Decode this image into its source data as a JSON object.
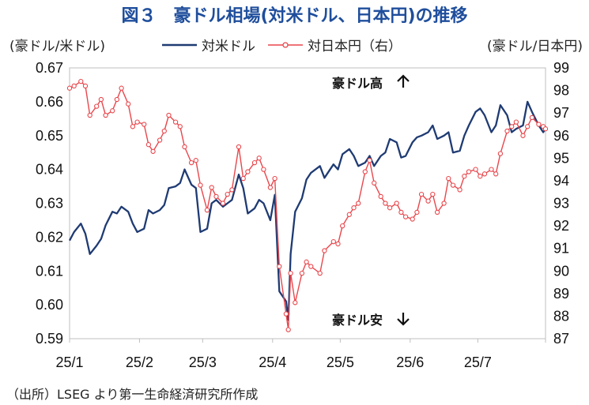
{
  "title": "図３　豪ドル相場(対米ドル、日本円)の推移",
  "left_unit": "(豪ドル/米ドル)",
  "right_unit": "(豪ドル/日本円)",
  "source": "（出所）LSEG より第一生命経済研究所作成",
  "colors": {
    "usd": "#1f3b73",
    "jpy": "#e8474c"
  },
  "chart_data": {
    "type": "line",
    "x_tick_labels": [
      "25/1",
      "25/2",
      "25/3",
      "25/4",
      "25/5",
      "25/6",
      "25/7"
    ],
    "x_range": [
      "2025-01-01",
      "2025-07-31"
    ],
    "y_left": {
      "range": [
        0.59,
        0.67
      ],
      "ticks": [
        "0.59",
        "0.60",
        "0.61",
        "0.62",
        "0.63",
        "0.64",
        "0.65",
        "0.66",
        "0.67"
      ]
    },
    "y_right": {
      "range": [
        87,
        99
      ],
      "ticks": [
        "87",
        "88",
        "89",
        "90",
        "91",
        "92",
        "93",
        "94",
        "95",
        "96",
        "97",
        "98",
        "99"
      ]
    },
    "annotations": {
      "up": "豪ドル高",
      "down": "豪ドル安"
    },
    "series": [
      {
        "name": "対米ドル",
        "axis": "left",
        "points": [
          [
            "2025-01-01",
            0.619
          ],
          [
            "2025-01-03",
            0.6215
          ],
          [
            "2025-01-06",
            0.624
          ],
          [
            "2025-01-08",
            0.621
          ],
          [
            "2025-01-10",
            0.615
          ],
          [
            "2025-01-13",
            0.6175
          ],
          [
            "2025-01-15",
            0.6195
          ],
          [
            "2025-01-17",
            0.6235
          ],
          [
            "2025-01-20",
            0.6275
          ],
          [
            "2025-01-22",
            0.627
          ],
          [
            "2025-01-24",
            0.629
          ],
          [
            "2025-01-27",
            0.6275
          ],
          [
            "2025-01-29",
            0.624
          ],
          [
            "2025-01-31",
            0.6215
          ],
          [
            "2025-02-03",
            0.6225
          ],
          [
            "2025-02-05",
            0.628
          ],
          [
            "2025-02-07",
            0.627
          ],
          [
            "2025-02-10",
            0.628
          ],
          [
            "2025-02-12",
            0.6295
          ],
          [
            "2025-02-14",
            0.6345
          ],
          [
            "2025-02-17",
            0.635
          ],
          [
            "2025-02-19",
            0.636
          ],
          [
            "2025-02-21",
            0.64
          ],
          [
            "2025-02-24",
            0.6355
          ],
          [
            "2025-02-26",
            0.6345
          ],
          [
            "2025-02-28",
            0.6215
          ],
          [
            "2025-03-03",
            0.6225
          ],
          [
            "2025-03-05",
            0.63
          ],
          [
            "2025-03-07",
            0.631
          ],
          [
            "2025-03-10",
            0.629
          ],
          [
            "2025-03-12",
            0.63
          ],
          [
            "2025-03-14",
            0.631
          ],
          [
            "2025-03-17",
            0.6385
          ],
          [
            "2025-03-19",
            0.6345
          ],
          [
            "2025-03-21",
            0.627
          ],
          [
            "2025-03-24",
            0.6285
          ],
          [
            "2025-03-26",
            0.631
          ],
          [
            "2025-03-28",
            0.63
          ],
          [
            "2025-03-31",
            0.625
          ],
          [
            "2025-04-02",
            0.6325
          ],
          [
            "2025-04-04",
            0.604
          ],
          [
            "2025-04-07",
            0.601
          ],
          [
            "2025-04-08",
            0.5955
          ],
          [
            "2025-04-09",
            0.615
          ],
          [
            "2025-04-11",
            0.6275
          ],
          [
            "2025-04-14",
            0.6315
          ],
          [
            "2025-04-16",
            0.637
          ],
          [
            "2025-04-18",
            0.639
          ],
          [
            "2025-04-22",
            0.641
          ],
          [
            "2025-04-24",
            0.6375
          ],
          [
            "2025-04-28",
            0.6415
          ],
          [
            "2025-04-30",
            0.64
          ],
          [
            "2025-05-02",
            0.6445
          ],
          [
            "2025-05-05",
            0.646
          ],
          [
            "2025-05-07",
            0.644
          ],
          [
            "2025-05-09",
            0.641
          ],
          [
            "2025-05-12",
            0.642
          ],
          [
            "2025-05-14",
            0.644
          ],
          [
            "2025-05-16",
            0.641
          ],
          [
            "2025-05-19",
            0.644
          ],
          [
            "2025-05-21",
            0.645
          ],
          [
            "2025-05-23",
            0.649
          ],
          [
            "2025-05-26",
            0.648
          ],
          [
            "2025-05-28",
            0.6435
          ],
          [
            "2025-05-30",
            0.644
          ],
          [
            "2025-06-02",
            0.648
          ],
          [
            "2025-06-04",
            0.6495
          ],
          [
            "2025-06-06",
            0.65
          ],
          [
            "2025-06-09",
            0.651
          ],
          [
            "2025-06-11",
            0.653
          ],
          [
            "2025-06-13",
            0.649
          ],
          [
            "2025-06-16",
            0.65
          ],
          [
            "2025-06-18",
            0.651
          ],
          [
            "2025-06-20",
            0.645
          ],
          [
            "2025-06-23",
            0.6455
          ],
          [
            "2025-06-25",
            0.65
          ],
          [
            "2025-06-27",
            0.653
          ],
          [
            "2025-06-30",
            0.657
          ],
          [
            "2025-07-02",
            0.658
          ],
          [
            "2025-07-04",
            0.656
          ],
          [
            "2025-07-07",
            0.651
          ],
          [
            "2025-07-09",
            0.653
          ],
          [
            "2025-07-11",
            0.659
          ],
          [
            "2025-07-14",
            0.656
          ],
          [
            "2025-07-16",
            0.651
          ],
          [
            "2025-07-18",
            0.652
          ],
          [
            "2025-07-21",
            0.653
          ],
          [
            "2025-07-23",
            0.66
          ],
          [
            "2025-07-25",
            0.657
          ],
          [
            "2025-07-28",
            0.653
          ],
          [
            "2025-07-30",
            0.651
          ],
          [
            "2025-07-31",
            0.652
          ]
        ]
      },
      {
        "name": "対日本円（右）",
        "axis": "right",
        "points": [
          [
            "2025-01-01",
            98.1
          ],
          [
            "2025-01-03",
            98.2
          ],
          [
            "2025-01-06",
            98.4
          ],
          [
            "2025-01-08",
            98.2
          ],
          [
            "2025-01-10",
            96.9
          ],
          [
            "2025-01-13",
            97.3
          ],
          [
            "2025-01-15",
            97.6
          ],
          [
            "2025-01-17",
            96.9
          ],
          [
            "2025-01-20",
            97.1
          ],
          [
            "2025-01-22",
            97.6
          ],
          [
            "2025-01-24",
            98.1
          ],
          [
            "2025-01-27",
            97.4
          ],
          [
            "2025-01-29",
            96.4
          ],
          [
            "2025-01-31",
            96.6
          ],
          [
            "2025-02-03",
            96.5
          ],
          [
            "2025-02-05",
            95.6
          ],
          [
            "2025-02-07",
            95.3
          ],
          [
            "2025-02-10",
            95.8
          ],
          [
            "2025-02-12",
            96.2
          ],
          [
            "2025-02-14",
            96.9
          ],
          [
            "2025-02-17",
            96.6
          ],
          [
            "2025-02-19",
            96.4
          ],
          [
            "2025-02-21",
            95.5
          ],
          [
            "2025-02-24",
            94.8
          ],
          [
            "2025-02-26",
            94.9
          ],
          [
            "2025-02-28",
            93.8
          ],
          [
            "2025-03-03",
            92.7
          ],
          [
            "2025-03-05",
            93.7
          ],
          [
            "2025-03-07",
            93.3
          ],
          [
            "2025-03-10",
            93.0
          ],
          [
            "2025-03-12",
            93.4
          ],
          [
            "2025-03-14",
            93.6
          ],
          [
            "2025-03-17",
            95.5
          ],
          [
            "2025-03-19",
            94.1
          ],
          [
            "2025-03-21",
            94.4
          ],
          [
            "2025-03-24",
            94.8
          ],
          [
            "2025-03-26",
            95.0
          ],
          [
            "2025-03-28",
            94.5
          ],
          [
            "2025-03-31",
            93.7
          ],
          [
            "2025-04-02",
            94.1
          ],
          [
            "2025-04-04",
            90.2
          ],
          [
            "2025-04-07",
            88.1
          ],
          [
            "2025-04-08",
            87.4
          ],
          [
            "2025-04-09",
            89.9
          ],
          [
            "2025-04-11",
            88.6
          ],
          [
            "2025-04-14",
            89.9
          ],
          [
            "2025-04-16",
            90.4
          ],
          [
            "2025-04-18",
            90.2
          ],
          [
            "2025-04-22",
            89.9
          ],
          [
            "2025-04-24",
            90.9
          ],
          [
            "2025-04-28",
            91.3
          ],
          [
            "2025-04-30",
            91.2
          ],
          [
            "2025-05-02",
            92.0
          ],
          [
            "2025-05-05",
            92.5
          ],
          [
            "2025-05-07",
            92.8
          ],
          [
            "2025-05-09",
            93.0
          ],
          [
            "2025-05-12",
            94.4
          ],
          [
            "2025-05-14",
            94.9
          ],
          [
            "2025-05-16",
            93.9
          ],
          [
            "2025-05-19",
            93.3
          ],
          [
            "2025-05-21",
            93.0
          ],
          [
            "2025-05-23",
            92.8
          ],
          [
            "2025-05-26",
            93.0
          ],
          [
            "2025-05-28",
            92.6
          ],
          [
            "2025-05-30",
            92.4
          ],
          [
            "2025-06-02",
            92.3
          ],
          [
            "2025-06-04",
            92.6
          ],
          [
            "2025-06-06",
            93.4
          ],
          [
            "2025-06-09",
            93.1
          ],
          [
            "2025-06-11",
            93.4
          ],
          [
            "2025-06-13",
            92.6
          ],
          [
            "2025-06-16",
            93.0
          ],
          [
            "2025-06-18",
            94.1
          ],
          [
            "2025-06-20",
            93.8
          ],
          [
            "2025-06-23",
            93.6
          ],
          [
            "2025-06-25",
            94.2
          ],
          [
            "2025-06-27",
            94.4
          ],
          [
            "2025-06-30",
            94.5
          ],
          [
            "2025-07-02",
            94.2
          ],
          [
            "2025-07-04",
            94.3
          ],
          [
            "2025-07-07",
            94.5
          ],
          [
            "2025-07-09",
            94.3
          ],
          [
            "2025-07-11",
            95.2
          ],
          [
            "2025-07-14",
            96.2
          ],
          [
            "2025-07-16",
            96.4
          ],
          [
            "2025-07-18",
            96.6
          ],
          [
            "2025-07-21",
            96.0
          ],
          [
            "2025-07-23",
            96.4
          ],
          [
            "2025-07-25",
            96.8
          ],
          [
            "2025-07-28",
            96.5
          ],
          [
            "2025-07-30",
            96.4
          ],
          [
            "2025-07-31",
            96.3
          ]
        ]
      }
    ]
  }
}
